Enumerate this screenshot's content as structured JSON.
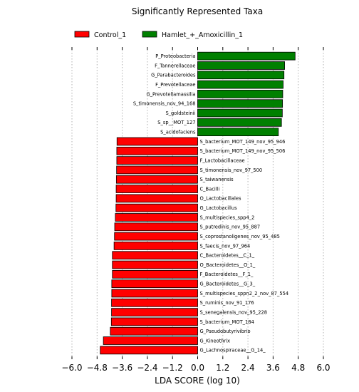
{
  "chart_data": {
    "type": "bar",
    "orientation": "horizontal",
    "title": "Significantly Represented Taxa",
    "xlabel": "LDA SCORE (log 10)",
    "ylabel": "",
    "xlim": [
      -6.0,
      6.0
    ],
    "xticks": [
      -6.0,
      -4.8,
      -3.6,
      -2.4,
      -1.2,
      0.0,
      1.2,
      2.4,
      3.6,
      4.8,
      6.0
    ],
    "xtick_labels": [
      "−6.0",
      "−4.8",
      "−3.6",
      "−2.4",
      "−1.2",
      "0.0",
      "1.2",
      "2.4",
      "3.6",
      "4.8",
      "6.0"
    ],
    "grid": "vertical dotted",
    "legend": {
      "placement": "top-left",
      "entries": [
        {
          "name": "Control_1",
          "color": "#ff0000"
        },
        {
          "name": "Hamlet_+_Amoxicillin_1",
          "color": "#008000"
        }
      ]
    },
    "colors": {
      "Control_1": "#ff0000",
      "Hamlet_+_Amoxicillin_1": "#008000"
    },
    "bars": [
      {
        "label": "P_Proteobacteria",
        "value": 4.65,
        "group": "Hamlet_+_Amoxicillin_1"
      },
      {
        "label": "F_Tannerellaceae",
        "value": 4.15,
        "group": "Hamlet_+_Amoxicillin_1"
      },
      {
        "label": "G_Parabacteroides",
        "value": 4.12,
        "group": "Hamlet_+_Amoxicillin_1"
      },
      {
        "label": "F_Prevotellaceae",
        "value": 4.08,
        "group": "Hamlet_+_Amoxicillin_1"
      },
      {
        "label": "G_Prevotellamassilia",
        "value": 4.06,
        "group": "Hamlet_+_Amoxicillin_1"
      },
      {
        "label": "S_timonensis_nov_94_168",
        "value": 4.05,
        "group": "Hamlet_+_Amoxicillin_1"
      },
      {
        "label": "S_goldsteinii",
        "value": 4.04,
        "group": "Hamlet_+_Amoxicillin_1"
      },
      {
        "label": "S_sp__MOT_127",
        "value": 4.0,
        "group": "Hamlet_+_Amoxicillin_1"
      },
      {
        "label": "S_acidofaciens",
        "value": 3.85,
        "group": "Hamlet_+_Amoxicillin_1"
      },
      {
        "label": "S_bacterium_MOT_149_nov_95_946",
        "value": -3.85,
        "group": "Control_1"
      },
      {
        "label": "S_bacterium_MOT_149_nov_95_506",
        "value": -3.86,
        "group": "Control_1"
      },
      {
        "label": "F_Lactobacillaceae",
        "value": -3.86,
        "group": "Control_1"
      },
      {
        "label": "S_timonensis_nov_97_500",
        "value": -3.87,
        "group": "Control_1"
      },
      {
        "label": "S_taiwanensis",
        "value": -3.88,
        "group": "Control_1"
      },
      {
        "label": "C_Bacilli",
        "value": -3.89,
        "group": "Control_1"
      },
      {
        "label": "O_Lactobacillales",
        "value": -3.89,
        "group": "Control_1"
      },
      {
        "label": "G_Lactobacillus",
        "value": -3.9,
        "group": "Control_1"
      },
      {
        "label": "S_multispecies_spp4_2",
        "value": -3.93,
        "group": "Control_1"
      },
      {
        "label": "S_putredinis_nov_95_887",
        "value": -3.96,
        "group": "Control_1"
      },
      {
        "label": "S_coprostanoligenes_nov_95_485",
        "value": -3.97,
        "group": "Control_1"
      },
      {
        "label": "S_faecis_nov_97_964",
        "value": -3.99,
        "group": "Control_1"
      },
      {
        "label": "C_Bacteroidetes__C_1_",
        "value": -4.07,
        "group": "Control_1"
      },
      {
        "label": "O_Bacteroidetes__O_1_",
        "value": -4.07,
        "group": "Control_1"
      },
      {
        "label": "F_Bacteroidetes__F_1_",
        "value": -4.07,
        "group": "Control_1"
      },
      {
        "label": "G_Bacteroidetes__G_3_",
        "value": -4.1,
        "group": "Control_1"
      },
      {
        "label": "S_multispecies_sppn2_2_nov_87_554",
        "value": -4.1,
        "group": "Control_1"
      },
      {
        "label": "S_ruminis_nov_91_176",
        "value": -4.11,
        "group": "Control_1"
      },
      {
        "label": "S_senegalensis_nov_95_228",
        "value": -4.11,
        "group": "Control_1"
      },
      {
        "label": "S_bacterium_MOT_184",
        "value": -4.12,
        "group": "Control_1"
      },
      {
        "label": "G_Pseudobutyrivibrio",
        "value": -4.17,
        "group": "Control_1"
      },
      {
        "label": "G_Kineothrix",
        "value": -4.5,
        "group": "Control_1"
      },
      {
        "label": "G_Lachnospiraceae__G_14_",
        "value": -4.65,
        "group": "Control_1"
      }
    ]
  }
}
